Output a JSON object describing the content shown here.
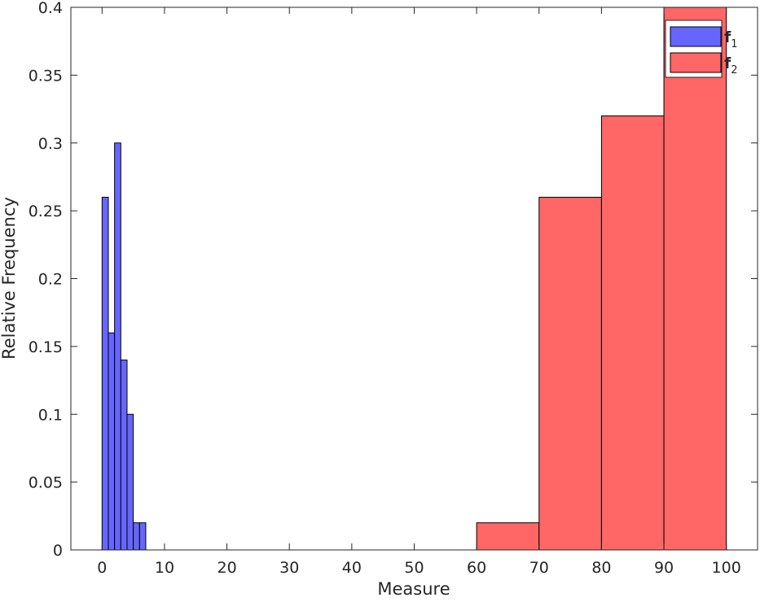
{
  "chart_data": {
    "type": "bar",
    "title": "",
    "xlabel": "Measure",
    "ylabel": "Relative Frequency",
    "xlim": [
      -5,
      105
    ],
    "ylim": [
      0,
      0.4
    ],
    "xticks": [
      0,
      10,
      20,
      30,
      40,
      50,
      60,
      70,
      80,
      90,
      100
    ],
    "yticks": [
      0,
      0.05,
      0.1,
      0.15,
      0.2,
      0.25,
      0.3,
      0.35,
      0.4
    ],
    "grid": false,
    "legend_position": "top-right",
    "series": [
      {
        "name": "f1",
        "legend_base": "f",
        "legend_sub": "1",
        "color": "#6666ff",
        "bins": [
          {
            "x0": 0,
            "x1": 1,
            "value": 0.26
          },
          {
            "x0": 1,
            "x1": 2,
            "value": 0.16
          },
          {
            "x0": 2,
            "x1": 3,
            "value": 0.3
          },
          {
            "x0": 3,
            "x1": 4,
            "value": 0.14
          },
          {
            "x0": 4,
            "x1": 5,
            "value": 0.1
          },
          {
            "x0": 5,
            "x1": 6,
            "value": 0.02
          },
          {
            "x0": 6,
            "x1": 7,
            "value": 0.02
          }
        ]
      },
      {
        "name": "f2",
        "legend_base": "f",
        "legend_sub": "2",
        "color": "#ff6666",
        "bins": [
          {
            "x0": 60,
            "x1": 70,
            "value": 0.02
          },
          {
            "x0": 70,
            "x1": 80,
            "value": 0.26
          },
          {
            "x0": 80,
            "x1": 90,
            "value": 0.32
          },
          {
            "x0": 90,
            "x1": 100,
            "value": 0.4
          }
        ]
      }
    ]
  }
}
